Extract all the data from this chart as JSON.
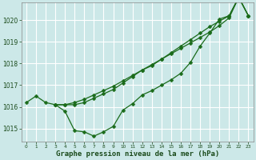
{
  "xlabel": "Graphe pression niveau de la mer (hPa)",
  "bg_color": "#cce8e8",
  "grid_color": "#ffffff",
  "line_color": "#1a6b1a",
  "xlim": [
    -0.5,
    23.5
  ],
  "ylim": [
    1014.4,
    1020.8
  ],
  "yticks": [
    1015,
    1016,
    1017,
    1018,
    1019,
    1020
  ],
  "xticks": [
    0,
    1,
    2,
    3,
    4,
    5,
    6,
    7,
    8,
    9,
    10,
    11,
    12,
    13,
    14,
    15,
    16,
    17,
    18,
    19,
    20,
    21,
    22,
    23
  ],
  "series1_x": [
    0,
    1,
    2,
    3,
    4,
    5,
    6,
    7,
    8,
    9,
    10,
    11,
    12,
    13,
    14,
    15,
    16,
    17,
    18,
    19,
    20,
    21,
    22,
    23
  ],
  "series1_y": [
    1016.2,
    1016.5,
    1016.2,
    1016.1,
    1015.8,
    1014.9,
    1014.85,
    1014.65,
    1014.85,
    1015.1,
    1015.85,
    1016.15,
    1016.55,
    1016.75,
    1017.0,
    1017.25,
    1017.55,
    1018.05,
    1018.8,
    1019.4,
    1020.05,
    1020.2,
    1021.05,
    1020.2
  ],
  "series2_x": [
    3,
    4,
    5,
    6,
    7,
    8,
    9,
    10,
    11,
    12,
    13,
    14,
    15,
    16,
    17,
    18,
    19,
    20,
    21,
    22,
    23
  ],
  "series2_y": [
    1016.1,
    1016.1,
    1016.1,
    1016.2,
    1016.4,
    1016.6,
    1016.8,
    1017.1,
    1017.4,
    1017.7,
    1017.9,
    1018.2,
    1018.5,
    1018.8,
    1019.1,
    1019.4,
    1019.7,
    1019.95,
    1020.2,
    1021.05,
    1020.2
  ],
  "series3_x": [
    3,
    4,
    5,
    6,
    7,
    8,
    9,
    10,
    11,
    12,
    13,
    14,
    15,
    16,
    17,
    18,
    19,
    20,
    21,
    22,
    23
  ],
  "series3_y": [
    1016.1,
    1016.1,
    1016.2,
    1016.35,
    1016.55,
    1016.75,
    1016.95,
    1017.2,
    1017.45,
    1017.7,
    1017.95,
    1018.2,
    1018.45,
    1018.7,
    1018.95,
    1019.2,
    1019.45,
    1019.75,
    1020.1,
    1021.05,
    1020.2
  ],
  "xlabel_fontsize": 6.5,
  "tick_fontsize": 5.5,
  "marker_size": 2.5,
  "line_width": 0.9
}
